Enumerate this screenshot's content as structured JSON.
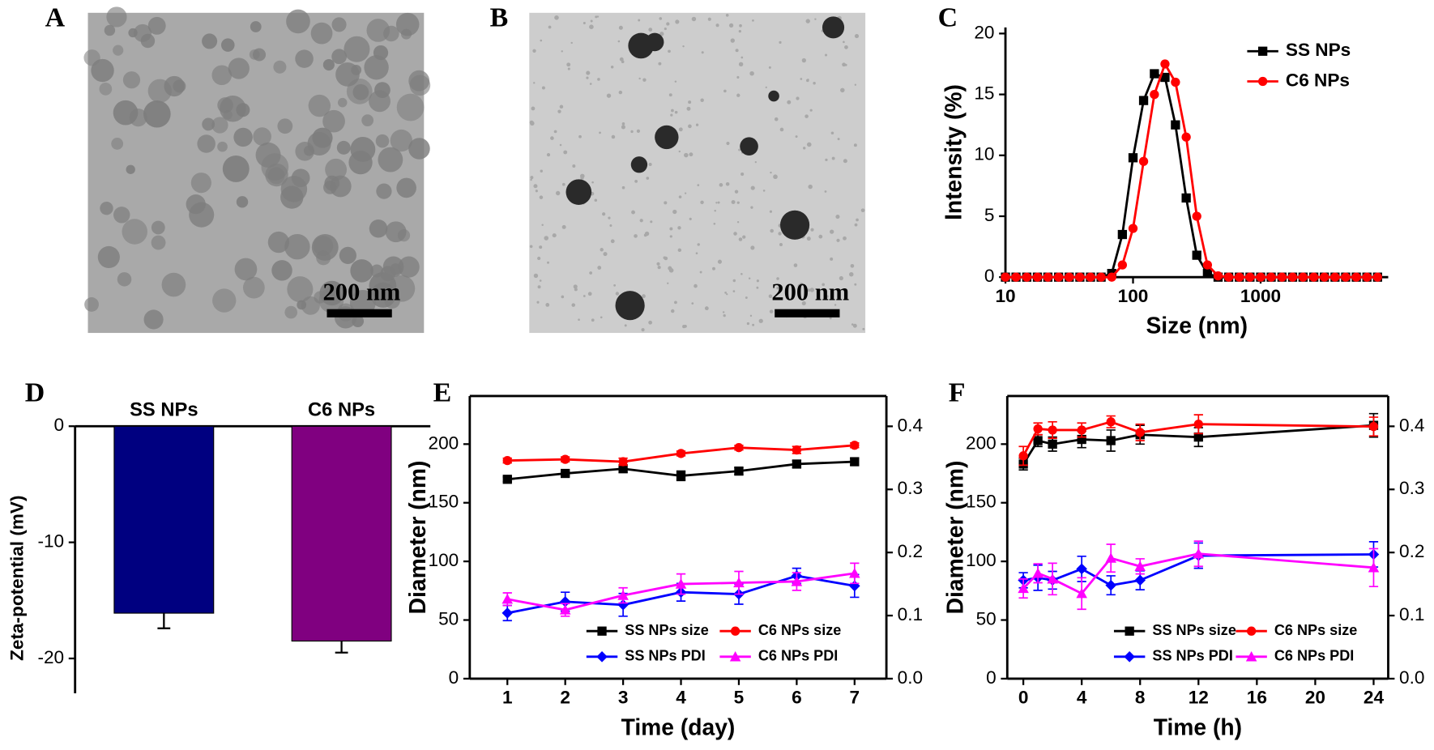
{
  "images": [
    {
      "label": "A",
      "scale_bar": "200 nm"
    },
    {
      "label": "B",
      "scale_bar": "200 nm"
    }
  ],
  "chart_data": [
    {
      "type": "line",
      "label": "C",
      "xlabel": "Size (nm)",
      "ylabel": "Intensity (%)",
      "xscale": "log",
      "xlim": [
        10,
        10000
      ],
      "xticks": [
        10,
        100,
        1000
      ],
      "ylim": [
        0,
        20.5
      ],
      "yticks": [
        0,
        5,
        10,
        15,
        20
      ],
      "frame": false,
      "legend": "upper right",
      "x": [
        10,
        12.1,
        14.7,
        17.8,
        21.5,
        26.1,
        31.6,
        38.3,
        46.4,
        56.2,
        68.1,
        82.5,
        100,
        121,
        147,
        178,
        215,
        261,
        316,
        383,
        464,
        562,
        681,
        825,
        1000,
        1210,
        1470,
        1780,
        2150,
        2610,
        3160,
        3830,
        4640,
        5620,
        6810,
        8250
      ],
      "series": [
        {
          "name": "SS NPs",
          "color": "#000000",
          "marker": "square",
          "values": [
            0,
            0,
            0,
            0,
            0,
            0,
            0,
            0,
            0,
            0,
            0.3,
            3.5,
            9.8,
            14.5,
            16.7,
            16.4,
            12.5,
            6.5,
            1.8,
            0.3,
            0,
            0,
            0,
            0,
            0,
            0,
            0,
            0,
            0,
            0,
            0,
            0,
            0,
            0,
            0,
            0
          ]
        },
        {
          "name": "C6 NPs",
          "color": "#ff0000",
          "marker": "circle",
          "values": [
            0,
            0,
            0,
            0,
            0,
            0,
            0,
            0,
            0,
            0,
            0,
            1.0,
            4.0,
            9.5,
            15.0,
            17.5,
            16.0,
            11.5,
            5.0,
            1.0,
            0.1,
            0,
            0,
            0,
            0,
            0,
            0,
            0,
            0,
            0,
            0,
            0,
            0,
            0,
            0,
            0
          ]
        }
      ]
    },
    {
      "type": "bar",
      "label": "D",
      "ylabel": "Zeta-potential (mV)",
      "categories": [
        "SS NPs",
        "C6 NPs"
      ],
      "values": [
        -16.1,
        -18.5
      ],
      "errors": [
        1.3,
        1.0
      ],
      "colors": [
        "#000080",
        "#800080"
      ],
      "ylim": [
        -23,
        0
      ],
      "yticks": [
        -20,
        -10,
        0
      ]
    },
    {
      "type": "line",
      "label": "E",
      "xlabel": "Time (day)",
      "ylabel": "Diameter (nm)",
      "xlim": [
        0.35,
        7.55
      ],
      "xticks": [
        1,
        2,
        3,
        4,
        5,
        6,
        7
      ],
      "ylim": [
        0,
        241
      ],
      "yticks": [
        0,
        50,
        100,
        150,
        200
      ],
      "y2lim": [
        0,
        0.448
      ],
      "y2ticks": [
        {
          "value": 0,
          "label": "0.0"
        },
        0.1,
        0.2,
        0.3,
        0.4
      ],
      "frame": true,
      "legend": "lower center",
      "x": [
        1,
        2,
        3,
        4,
        5,
        6,
        7
      ],
      "series": [
        {
          "name": "SS NPs size",
          "color": "#000000",
          "marker": "square",
          "values": [
            170,
            175,
            179,
            173,
            177,
            183,
            185
          ],
          "errors": [
            2,
            2,
            3,
            4,
            3,
            3,
            3
          ]
        },
        {
          "name": "C6 NPs size",
          "color": "#ff0000",
          "marker": "circle",
          "values": [
            186,
            187,
            185,
            192,
            197,
            195,
            199
          ],
          "errors": [
            2,
            2,
            3,
            2,
            2,
            3,
            2
          ]
        },
        {
          "name": "SS NPs PDI",
          "color": "#0000ff",
          "marker": "diamond",
          "axis": "y2",
          "values": [
            0.104,
            0.122,
            0.117,
            0.137,
            0.134,
            0.163,
            0.147
          ],
          "errors": [
            0.012,
            0.015,
            0.018,
            0.014,
            0.016,
            0.012,
            0.018
          ]
        },
        {
          "name": "C6 NPs PDI",
          "color": "#ff00ff",
          "marker": "triangle",
          "axis": "y2",
          "values": [
            0.126,
            0.109,
            0.132,
            0.15,
            0.152,
            0.154,
            0.167
          ],
          "errors": [
            0.01,
            0.01,
            0.012,
            0.016,
            0.018,
            0.014,
            0.016
          ]
        }
      ]
    },
    {
      "type": "line",
      "label": "F",
      "xlabel": "Time (h)",
      "ylabel": "Diameter (nm)",
      "xlim": [
        -1.1,
        25
      ],
      "xticks": [
        0,
        4,
        8,
        12,
        16,
        20,
        24
      ],
      "ylim": [
        0,
        241
      ],
      "yticks": [
        0,
        50,
        100,
        150,
        200
      ],
      "y2lim": [
        0,
        0.448
      ],
      "y2ticks": [
        {
          "value": 0,
          "label": "0.0"
        },
        0.1,
        0.2,
        0.3,
        0.4
      ],
      "frame": true,
      "legend": "lower center",
      "x": [
        0,
        1,
        2,
        4,
        6,
        8,
        12,
        24
      ],
      "series": [
        {
          "name": "SS NPs size",
          "color": "#000000",
          "marker": "square",
          "values": [
            183,
            203,
            200,
            204,
            203,
            208,
            206,
            216
          ],
          "errors": [
            5,
            5,
            6,
            7,
            9,
            8,
            8,
            10
          ]
        },
        {
          "name": "C6 NPs size",
          "color": "#ff0000",
          "marker": "circle",
          "values": [
            190,
            213,
            212,
            212,
            219,
            210,
            217,
            215
          ],
          "errors": [
            8,
            5,
            7,
            6,
            5,
            7,
            8,
            8
          ]
        },
        {
          "name": "SS NPs PDI",
          "color": "#0000ff",
          "marker": "diamond",
          "axis": "y2",
          "values": [
            0.156,
            0.16,
            0.156,
            0.174,
            0.148,
            0.156,
            0.195,
            0.197
          ],
          "errors": [
            0.012,
            0.02,
            0.014,
            0.02,
            0.015,
            0.015,
            0.02,
            0.02
          ]
        },
        {
          "name": "C6 NPs PDI",
          "color": "#ff00ff",
          "marker": "triangle",
          "axis": "y2",
          "values": [
            0.143,
            0.167,
            0.158,
            0.135,
            0.191,
            0.178,
            0.198,
            0.176
          ],
          "errors": [
            0.015,
            0.015,
            0.025,
            0.025,
            0.022,
            0.012,
            0.02,
            0.03
          ]
        }
      ]
    }
  ]
}
